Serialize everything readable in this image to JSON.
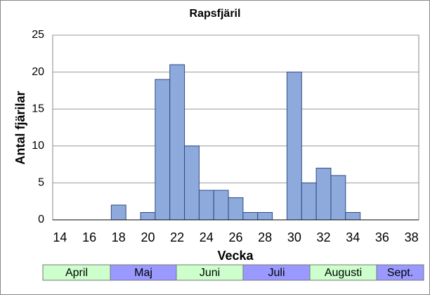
{
  "chart_data": {
    "type": "bar",
    "title": "Rapsfjäril",
    "x_label": "Vecka",
    "y_label": "Antal fjärilar",
    "categories": [
      14,
      null,
      16,
      null,
      18,
      null,
      20,
      null,
      22,
      null,
      24,
      null,
      26,
      null,
      28,
      null,
      30,
      null,
      32,
      null,
      34,
      null,
      36,
      null,
      38
    ],
    "values": [
      0,
      0,
      0,
      0,
      2,
      0,
      1,
      19,
      21,
      10,
      4,
      4,
      3,
      1,
      1,
      0,
      20,
      5,
      7,
      6,
      1,
      0,
      0,
      0,
      0
    ],
    "color": "#8eaadc",
    "ylim": [
      0,
      25
    ],
    "yticks": [
      0,
      5,
      10,
      15,
      20,
      25
    ],
    "grid": true,
    "months": [
      {
        "label": "April",
        "color": "#ccffcc"
      },
      {
        "label": "Maj",
        "color": "#9999ff"
      },
      {
        "label": "Juni",
        "color": "#ccffcc"
      },
      {
        "label": "Juli",
        "color": "#9999ff"
      },
      {
        "label": "Augusti",
        "color": "#ccffcc"
      },
      {
        "label": "Sept.",
        "color": "#9999ff"
      }
    ]
  }
}
